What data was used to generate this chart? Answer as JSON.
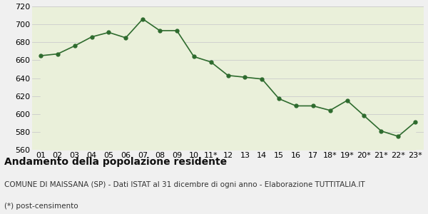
{
  "x_labels": [
    "01",
    "02",
    "03",
    "04",
    "05",
    "06",
    "07",
    "08",
    "09",
    "10",
    "11*",
    "12",
    "13",
    "14",
    "15",
    "16",
    "17",
    "18*",
    "19*",
    "20*",
    "21*",
    "22*",
    "23*"
  ],
  "values": [
    665,
    667,
    676,
    686,
    691,
    685,
    706,
    693,
    693,
    664,
    658,
    643,
    641,
    639,
    617,
    609,
    609,
    604,
    615,
    598,
    581,
    575,
    591
  ],
  "line_color": "#2e6b2e",
  "fill_color": "#eaf0da",
  "marker_color": "#2e6b2e",
  "bg_color": "#f0f0f0",
  "grid_color": "#cccccc",
  "ylim": [
    560,
    720
  ],
  "yticks": [
    560,
    580,
    600,
    620,
    640,
    660,
    680,
    700,
    720
  ],
  "title": "Andamento della popolazione residente",
  "subtitle": "COMUNE DI MAISSANA (SP) - Dati ISTAT al 31 dicembre di ogni anno - Elaborazione TUTTITALIA.IT",
  "footnote": "(*) post-censimento",
  "title_fontsize": 10,
  "subtitle_fontsize": 7.5,
  "footnote_fontsize": 7.5,
  "tick_fontsize": 8
}
